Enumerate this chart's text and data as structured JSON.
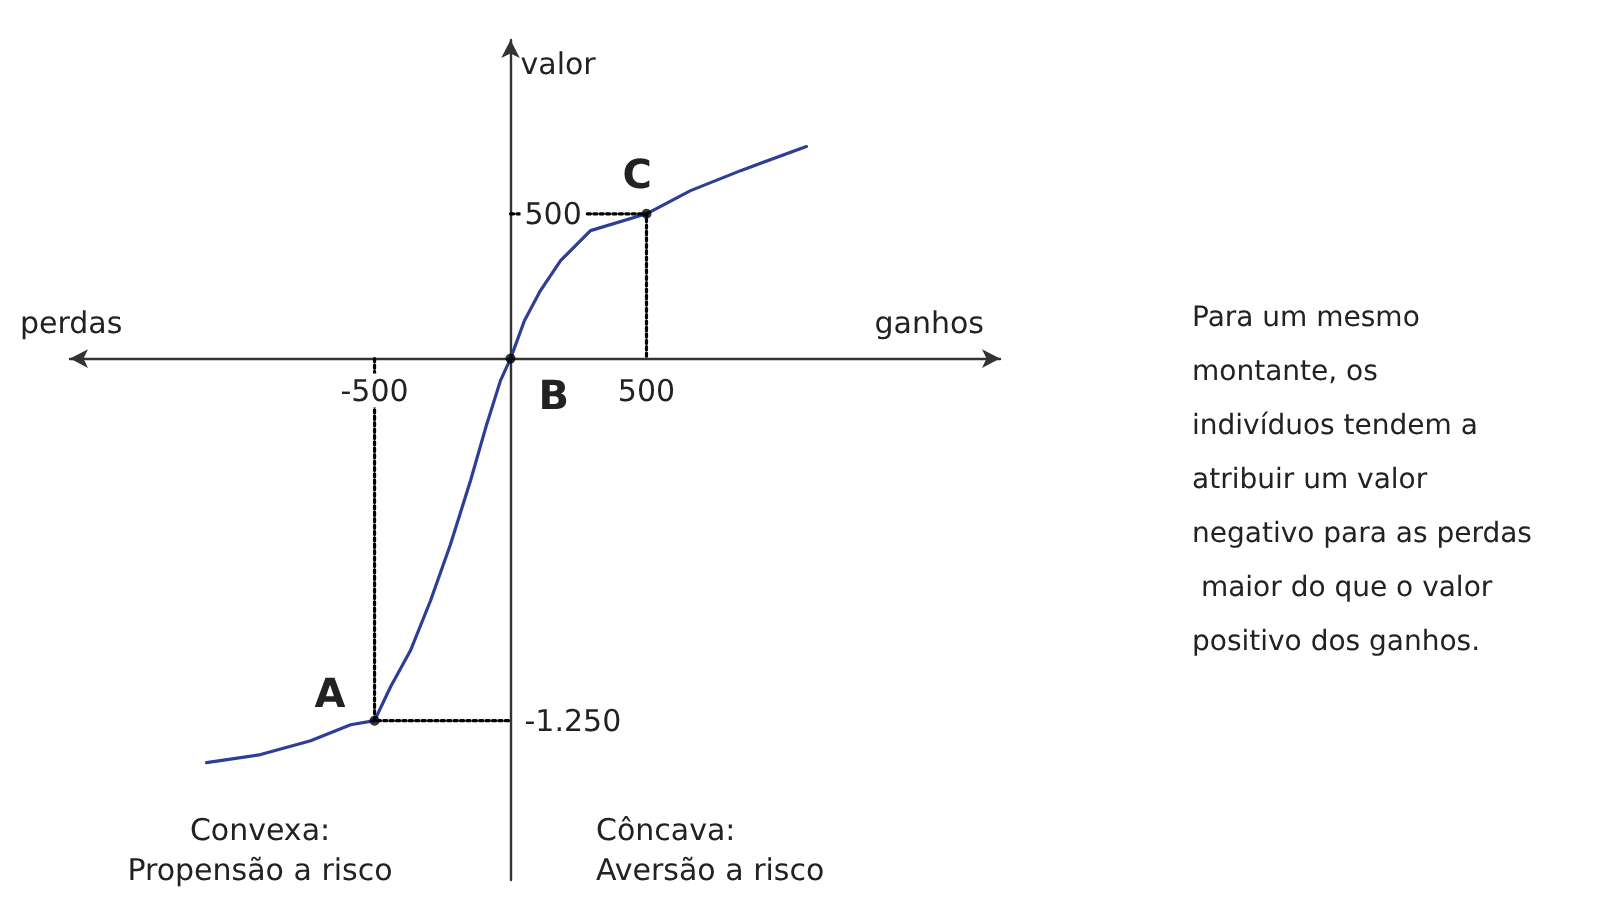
{
  "chart_data": {
    "type": "line",
    "xlabel": "ganhos",
    "ylabel": "valor",
    "xlim": [
      -1620,
      1800
    ],
    "ylim": [
      -1800,
      1100
    ],
    "series": [
      {
        "color": "#2e3d96",
        "x": [
          -1118,
          -919,
          -735,
          -588,
          -500,
          -441,
          -368,
          -294,
          -221,
          -147,
          -88,
          -37,
          0,
          51,
          110,
          184,
          294,
          500,
          662,
          846,
          1088
        ],
        "values": [
          -1395,
          -1367,
          -1319,
          -1264,
          -1250,
          -1133,
          -1008,
          -835,
          -642,
          -421,
          -228,
          -76,
          0,
          131,
          235,
          338,
          442,
          500,
          580,
          649,
          732
        ]
      },
      {
        "type": "line",
        "line_style": "dotted",
        "color": "#000000",
        "x": [
          -500,
          -500,
          0
        ],
        "values": [
          0,
          -1250,
          -1250
        ]
      },
      {
        "type": "line",
        "line_style": "dotted",
        "color": "#000000",
        "x": [
          0,
          500,
          500
        ],
        "values": [
          500,
          500,
          0
        ]
      },
      {
        "type": "scatter",
        "marker": "circle",
        "color": "#000000",
        "x": [
          -500,
          0,
          500
        ],
        "values": [
          -1250,
          0,
          500
        ]
      }
    ],
    "annotations": [
      {
        "text": "A",
        "x": -500,
        "y": -1250
      },
      {
        "text": "B",
        "x": 0,
        "y": 0
      },
      {
        "text": "C",
        "x": 500,
        "y": 500
      },
      "perdas",
      "Convexa:\nPropensão a risco",
      "Côncava:\nAversão a risco",
      "Para um mesmo montante, os indivíduos tendem a atribuir um valor negativo para as perdas maior do que o valor positivo dos ganhos."
    ],
    "grid": false,
    "xticks": [
      -500,
      500
    ],
    "yticks": [
      {
        "value": -1250,
        "label": "-1.250"
      },
      500
    ]
  }
}
